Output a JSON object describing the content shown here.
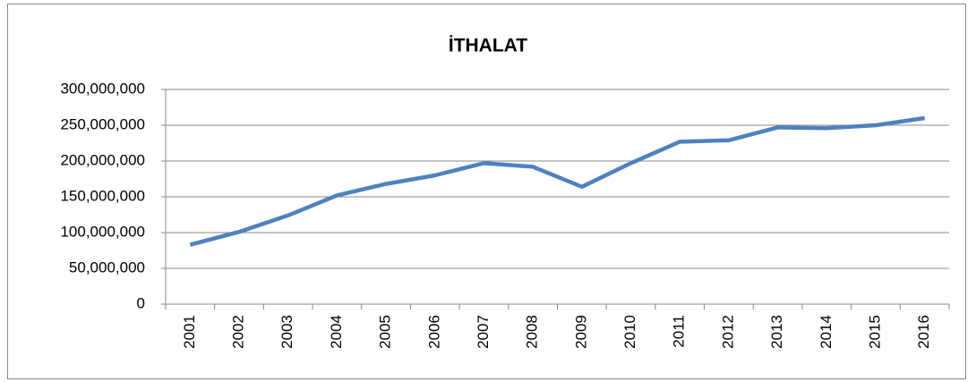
{
  "chart_data": {
    "type": "line",
    "title": "İTHALAT",
    "categories": [
      "2001",
      "2002",
      "2003",
      "2004",
      "2005",
      "2006",
      "2007",
      "2008",
      "2009",
      "2010",
      "2011",
      "2012",
      "2013",
      "2014",
      "2015",
      "2016"
    ],
    "series": [
      {
        "name": "İTHALAT",
        "color": "#4f81bd",
        "values": [
          83000000,
          101000000,
          124000000,
          152000000,
          168000000,
          180000000,
          197000000,
          192000000,
          164000000,
          197000000,
          227000000,
          229000000,
          247000000,
          246000000,
          250000000,
          260000000
        ]
      }
    ],
    "ylim": [
      0,
      300000000
    ],
    "yticks": [
      {
        "value": 0,
        "label": "0"
      },
      {
        "value": 50000000,
        "label": "50,000,000"
      },
      {
        "value": 100000000,
        "label": "100,000,000"
      },
      {
        "value": 150000000,
        "label": "150,000,000"
      },
      {
        "value": 200000000,
        "label": "200,000,000"
      },
      {
        "value": 250000000,
        "label": "250,000,000"
      },
      {
        "value": 300000000,
        "label": "300,000,000"
      }
    ],
    "grid": true
  }
}
